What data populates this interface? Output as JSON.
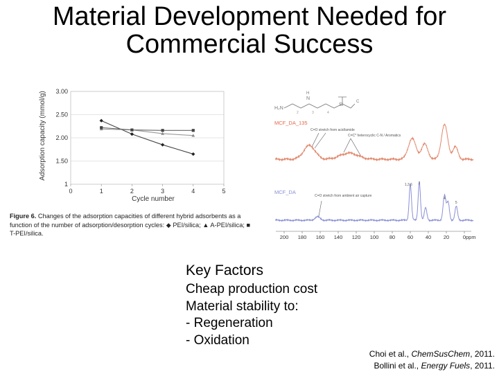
{
  "slide": {
    "title_line1": "Material Development Needed for",
    "title_line2": "Commercial Success"
  },
  "chart_data": {
    "type": "line",
    "ylabel": "Adsorption capacity (mmol/g)",
    "xlabel": "Cycle number",
    "xlim": [
      0,
      5
    ],
    "ylim": [
      1.0,
      3.0
    ],
    "x_ticks": [
      "0",
      "1",
      "2",
      "3",
      "4",
      "5"
    ],
    "y_ticks": [
      "1",
      "1.50",
      "2.00",
      "2.50",
      "3.00"
    ],
    "x": [
      1,
      2,
      3,
      4
    ],
    "series": [
      {
        "name": "PEI/silica",
        "marker": "diamond",
        "values": [
          2.37,
          2.08,
          1.85,
          1.65
        ]
      },
      {
        "name": "A-PEI/silica",
        "marker": "triangle",
        "values": [
          2.19,
          2.17,
          2.09,
          2.05
        ]
      },
      {
        "name": "T-PEI/silica",
        "marker": "square",
        "values": [
          2.22,
          2.17,
          2.16,
          2.16
        ]
      }
    ]
  },
  "figure_caption": {
    "label": "Figure 6.",
    "text": " Changes of the adsorption capacities of different hybrid adsorbents as a function of the number of adsorption/desorption cycles: ◆ PEI/silica; ▲ A-PEI/silica; ■ T-PEI/silica."
  },
  "nmr": {
    "label_top": "MCF_DA_135",
    "label_bottom": "MCF_DA",
    "annot_amide": "C=O stretch from acid/amide",
    "annot_aromatic": "C=C* heterocyclic C-N / Aromatics",
    "annot_air": "C=O stretch from ambient air capture",
    "x_ticks": [
      "200",
      "180",
      "160",
      "140",
      "120",
      "100",
      "80",
      "60",
      "40",
      "20",
      "0"
    ],
    "x_unit": "ppm",
    "peak_labels": [
      "1,3,6",
      "2",
      "4",
      "5"
    ],
    "colors": {
      "top": "#e0866a",
      "bottom": "#8a8fd6"
    }
  },
  "factors": {
    "heading": "Key Factors",
    "lines": [
      "Cheap production cost",
      "Material stability to:",
      "-  Regeneration",
      "-  Oxidation"
    ]
  },
  "refs": {
    "r1_prefix": "Choi et al., ",
    "r1_journal": "ChemSusChem",
    "r1_year": ", 2011.",
    "r2_prefix": "Bollini et al., ",
    "r2_journal": "Energy Fuels",
    "r2_year": ", 2011."
  }
}
